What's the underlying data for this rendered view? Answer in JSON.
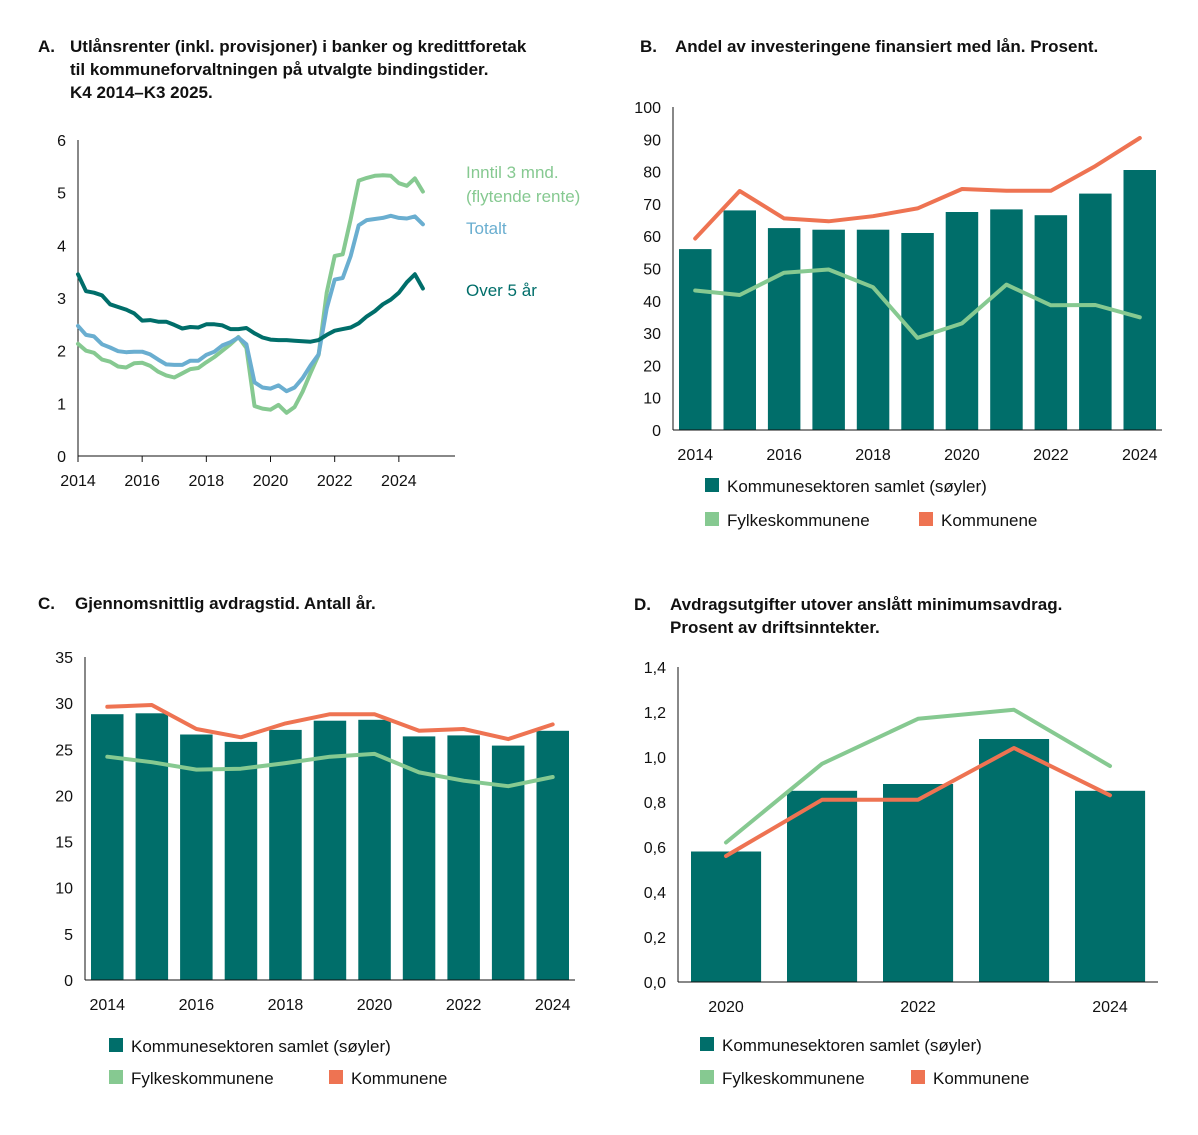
{
  "colors": {
    "bar": "#006e6a",
    "green": "#86c991",
    "orange": "#ee7352",
    "blue": "#6aaed0",
    "dark": "#006e6a"
  },
  "chart_data": [
    {
      "id": "A",
      "type": "line",
      "letter": "A.",
      "title_lines": [
        "Utlånsrenter (inkl. provisjoner) i banker og kredittforetak",
        "til  kommuneforvaltningen på utvalgte bindingstider.",
        "K4 2014–K3 2025."
      ],
      "ylim": [
        0,
        6
      ],
      "yticks": [
        "0",
        "1",
        "2",
        "3",
        "4",
        "5",
        "6"
      ],
      "xlim": [
        2014,
        2025.75
      ],
      "xticks": [
        {
          "value": 2014,
          "label": "2014"
        },
        {
          "value": 2016,
          "label": "2016"
        },
        {
          "value": 2018,
          "label": "2018"
        },
        {
          "value": 2020,
          "label": "2020"
        },
        {
          "value": 2022,
          "label": "2022"
        },
        {
          "value": 2024,
          "label": "2024"
        }
      ],
      "series": [
        {
          "name": "Inntil 3 mnd. (flytende rente)",
          "label_lines": [
            "Inntil 3 mnd.",
            "(flytende rente)"
          ],
          "color": "#86c991",
          "points": [
            [
              2014.0,
              2.13
            ],
            [
              2014.25,
              2.0
            ],
            [
              2014.5,
              1.96
            ],
            [
              2014.75,
              1.83
            ],
            [
              2015.0,
              1.79
            ],
            [
              2015.25,
              1.7
            ],
            [
              2015.5,
              1.68
            ],
            [
              2015.75,
              1.76
            ],
            [
              2016.0,
              1.77
            ],
            [
              2016.25,
              1.71
            ],
            [
              2016.5,
              1.6
            ],
            [
              2016.75,
              1.53
            ],
            [
              2017.0,
              1.49
            ],
            [
              2017.25,
              1.57
            ],
            [
              2017.5,
              1.65
            ],
            [
              2017.75,
              1.67
            ],
            [
              2018.0,
              1.78
            ],
            [
              2018.25,
              1.88
            ],
            [
              2018.5,
              2.0
            ],
            [
              2018.75,
              2.12
            ],
            [
              2019.0,
              2.26
            ],
            [
              2019.25,
              2.05
            ],
            [
              2019.5,
              0.95
            ],
            [
              2019.75,
              0.9
            ],
            [
              2020.0,
              0.88
            ],
            [
              2020.25,
              0.97
            ],
            [
              2020.5,
              0.82
            ],
            [
              2020.75,
              0.93
            ],
            [
              2021.0,
              1.22
            ],
            [
              2021.25,
              1.58
            ],
            [
              2021.5,
              1.92
            ],
            [
              2021.75,
              3.1
            ],
            [
              2022.0,
              3.8
            ],
            [
              2022.25,
              3.83
            ],
            [
              2022.5,
              4.5
            ],
            [
              2022.75,
              5.23
            ],
            [
              2023.0,
              5.28
            ],
            [
              2023.25,
              5.32
            ],
            [
              2023.5,
              5.33
            ],
            [
              2023.75,
              5.32
            ],
            [
              2024.0,
              5.18
            ],
            [
              2024.25,
              5.13
            ],
            [
              2024.5,
              5.27
            ],
            [
              2024.75,
              5.02
            ]
          ]
        },
        {
          "name": "Totalt",
          "label_lines": [
            "Totalt"
          ],
          "color": "#6aaed0",
          "points": [
            [
              2014.0,
              2.47
            ],
            [
              2014.25,
              2.3
            ],
            [
              2014.5,
              2.27
            ],
            [
              2014.75,
              2.12
            ],
            [
              2015.0,
              2.06
            ],
            [
              2015.25,
              1.99
            ],
            [
              2015.5,
              1.97
            ],
            [
              2015.75,
              1.98
            ],
            [
              2016.0,
              1.98
            ],
            [
              2016.25,
              1.93
            ],
            [
              2016.5,
              1.83
            ],
            [
              2016.75,
              1.74
            ],
            [
              2017.0,
              1.73
            ],
            [
              2017.25,
              1.73
            ],
            [
              2017.5,
              1.81
            ],
            [
              2017.75,
              1.81
            ],
            [
              2018.0,
              1.92
            ],
            [
              2018.25,
              1.98
            ],
            [
              2018.5,
              2.1
            ],
            [
              2018.75,
              2.16
            ],
            [
              2019.0,
              2.25
            ],
            [
              2019.25,
              2.12
            ],
            [
              2019.5,
              1.4
            ],
            [
              2019.75,
              1.3
            ],
            [
              2020.0,
              1.28
            ],
            [
              2020.25,
              1.34
            ],
            [
              2020.5,
              1.23
            ],
            [
              2020.75,
              1.3
            ],
            [
              2021.0,
              1.48
            ],
            [
              2021.25,
              1.72
            ],
            [
              2021.5,
              1.93
            ],
            [
              2021.75,
              2.8
            ],
            [
              2022.0,
              3.35
            ],
            [
              2022.25,
              3.38
            ],
            [
              2022.5,
              3.8
            ],
            [
              2022.75,
              4.38
            ],
            [
              2023.0,
              4.48
            ],
            [
              2023.25,
              4.5
            ],
            [
              2023.5,
              4.52
            ],
            [
              2023.75,
              4.56
            ],
            [
              2024.0,
              4.52
            ],
            [
              2024.25,
              4.51
            ],
            [
              2024.5,
              4.55
            ],
            [
              2024.75,
              4.4
            ]
          ]
        },
        {
          "name": "Over 5 år",
          "label_lines": [
            "Over 5 år"
          ],
          "color": "#006e6a",
          "points": [
            [
              2014.0,
              3.45
            ],
            [
              2014.25,
              3.13
            ],
            [
              2014.5,
              3.1
            ],
            [
              2014.75,
              3.05
            ],
            [
              2015.0,
              2.88
            ],
            [
              2015.25,
              2.83
            ],
            [
              2015.5,
              2.78
            ],
            [
              2015.75,
              2.71
            ],
            [
              2016.0,
              2.57
            ],
            [
              2016.25,
              2.58
            ],
            [
              2016.5,
              2.55
            ],
            [
              2016.75,
              2.55
            ],
            [
              2017.0,
              2.49
            ],
            [
              2017.25,
              2.42
            ],
            [
              2017.5,
              2.45
            ],
            [
              2017.75,
              2.44
            ],
            [
              2018.0,
              2.5
            ],
            [
              2018.25,
              2.5
            ],
            [
              2018.5,
              2.48
            ],
            [
              2018.75,
              2.41
            ],
            [
              2019.0,
              2.41
            ],
            [
              2019.25,
              2.43
            ],
            [
              2019.5,
              2.33
            ],
            [
              2019.75,
              2.25
            ],
            [
              2020.0,
              2.21
            ],
            [
              2020.25,
              2.2
            ],
            [
              2020.5,
              2.2
            ],
            [
              2020.75,
              2.19
            ],
            [
              2021.0,
              2.18
            ],
            [
              2021.25,
              2.17
            ],
            [
              2021.5,
              2.2
            ],
            [
              2021.75,
              2.3
            ],
            [
              2022.0,
              2.38
            ],
            [
              2022.25,
              2.41
            ],
            [
              2022.5,
              2.44
            ],
            [
              2022.75,
              2.52
            ],
            [
              2023.0,
              2.65
            ],
            [
              2023.25,
              2.75
            ],
            [
              2023.5,
              2.88
            ],
            [
              2023.75,
              2.97
            ],
            [
              2024.0,
              3.1
            ],
            [
              2024.25,
              3.3
            ],
            [
              2024.5,
              3.45
            ],
            [
              2024.75,
              3.18
            ]
          ]
        }
      ]
    },
    {
      "id": "B",
      "type": "bar",
      "letter": "B.",
      "title_lines": [
        "Andel av investeringene finansiert med lån. Prosent."
      ],
      "ylim": [
        0,
        100
      ],
      "yticks": [
        "0",
        "10",
        "20",
        "30",
        "40",
        "50",
        "60",
        "70",
        "80",
        "90",
        "100"
      ],
      "categories": [
        "2014",
        "2015",
        "2016",
        "2017",
        "2018",
        "2019",
        "2020",
        "2021",
        "2022",
        "2023",
        "2024"
      ],
      "xtick_labels": [
        "2014",
        "",
        "2016",
        "",
        "2018",
        "",
        "2020",
        "",
        "2022",
        "",
        "2024"
      ],
      "bars": {
        "name": "Kommunesektoren samlet (søyler)",
        "color": "#006e6a",
        "values": [
          56,
          68,
          62.5,
          62,
          62,
          61,
          67.5,
          68.3,
          66.5,
          73.2,
          80.5
        ]
      },
      "series": [
        {
          "name": "Fylkeskommunene",
          "color": "#86c991",
          "values": [
            43.2,
            41.8,
            48.7,
            49.7,
            44.2,
            28.5,
            33,
            45,
            38.6,
            38.7,
            34.9
          ]
        },
        {
          "name": "Kommunene",
          "color": "#ee7352",
          "values": [
            59.3,
            74,
            65.5,
            64.6,
            66.2,
            68.6,
            74.6,
            74.1,
            74.1,
            81.7,
            90.4
          ]
        }
      ],
      "legend": {
        "bars": "Kommunesektoren samlet (søyler)",
        "line1": "Fylkeskommunene",
        "line2": "Kommunene"
      }
    },
    {
      "id": "C",
      "type": "bar",
      "letter": "C.",
      "title_lines": [
        "Gjennomsnittlig avdragstid. Antall år."
      ],
      "ylim": [
        0,
        35
      ],
      "yticks": [
        "0",
        "5",
        "10",
        "15",
        "20",
        "25",
        "30",
        "35"
      ],
      "categories": [
        "2014",
        "2015",
        "2016",
        "2017",
        "2018",
        "2019",
        "2020",
        "2021",
        "2022",
        "2023",
        "2024"
      ],
      "xtick_labels": [
        "2014",
        "",
        "2016",
        "",
        "2018",
        "",
        "2020",
        "",
        "2022",
        "",
        "2024"
      ],
      "bars": {
        "name": "Kommunesektoren samlet (søyler)",
        "color": "#006e6a",
        "values": [
          28.8,
          28.9,
          26.6,
          25.8,
          27.1,
          28.1,
          28.2,
          26.4,
          26.5,
          25.4,
          27
        ]
      },
      "series": [
        {
          "name": "Fylkeskommunene",
          "color": "#86c991",
          "values": [
            24.2,
            23.6,
            22.8,
            22.9,
            23.5,
            24.2,
            24.5,
            22.5,
            21.6,
            21,
            22
          ]
        },
        {
          "name": "Kommunene",
          "color": "#ee7352",
          "values": [
            29.6,
            29.8,
            27.2,
            26.3,
            27.8,
            28.8,
            28.8,
            27,
            27.2,
            26.1,
            27.7
          ]
        }
      ],
      "legend": {
        "bars": "Kommunesektoren samlet (søyler)",
        "line1": "Fylkeskommunene",
        "line2": "Kommunene"
      }
    },
    {
      "id": "D",
      "type": "bar",
      "letter": "D.",
      "title_lines": [
        "Avdragsutgifter utover anslått minimumsavdrag.",
        "Prosent av driftsinntekter."
      ],
      "ylim": [
        0,
        1.4
      ],
      "yticks": [
        "0,0",
        "0,2",
        "0,4",
        "0,6",
        "0,8",
        "1,0",
        "1,2",
        "1,4"
      ],
      "categories": [
        "2020",
        "2021",
        "2022",
        "2023",
        "2024"
      ],
      "xtick_labels": [
        "2020",
        "",
        "2022",
        "",
        "2024"
      ],
      "bars": {
        "name": "Kommunesektoren samlet (søyler)",
        "color": "#006e6a",
        "values": [
          0.58,
          0.85,
          0.88,
          1.08,
          0.85
        ]
      },
      "series": [
        {
          "name": "Fylkeskommunene",
          "color": "#86c991",
          "values": [
            0.62,
            0.97,
            1.17,
            1.21,
            0.96
          ]
        },
        {
          "name": "Kommunene",
          "color": "#ee7352",
          "values": [
            0.56,
            0.81,
            0.81,
            1.04,
            0.83
          ]
        }
      ],
      "legend": {
        "bars": "Kommunesektoren samlet (søyler)",
        "line1": "Fylkeskommunene",
        "line2": "Kommunene"
      }
    }
  ]
}
